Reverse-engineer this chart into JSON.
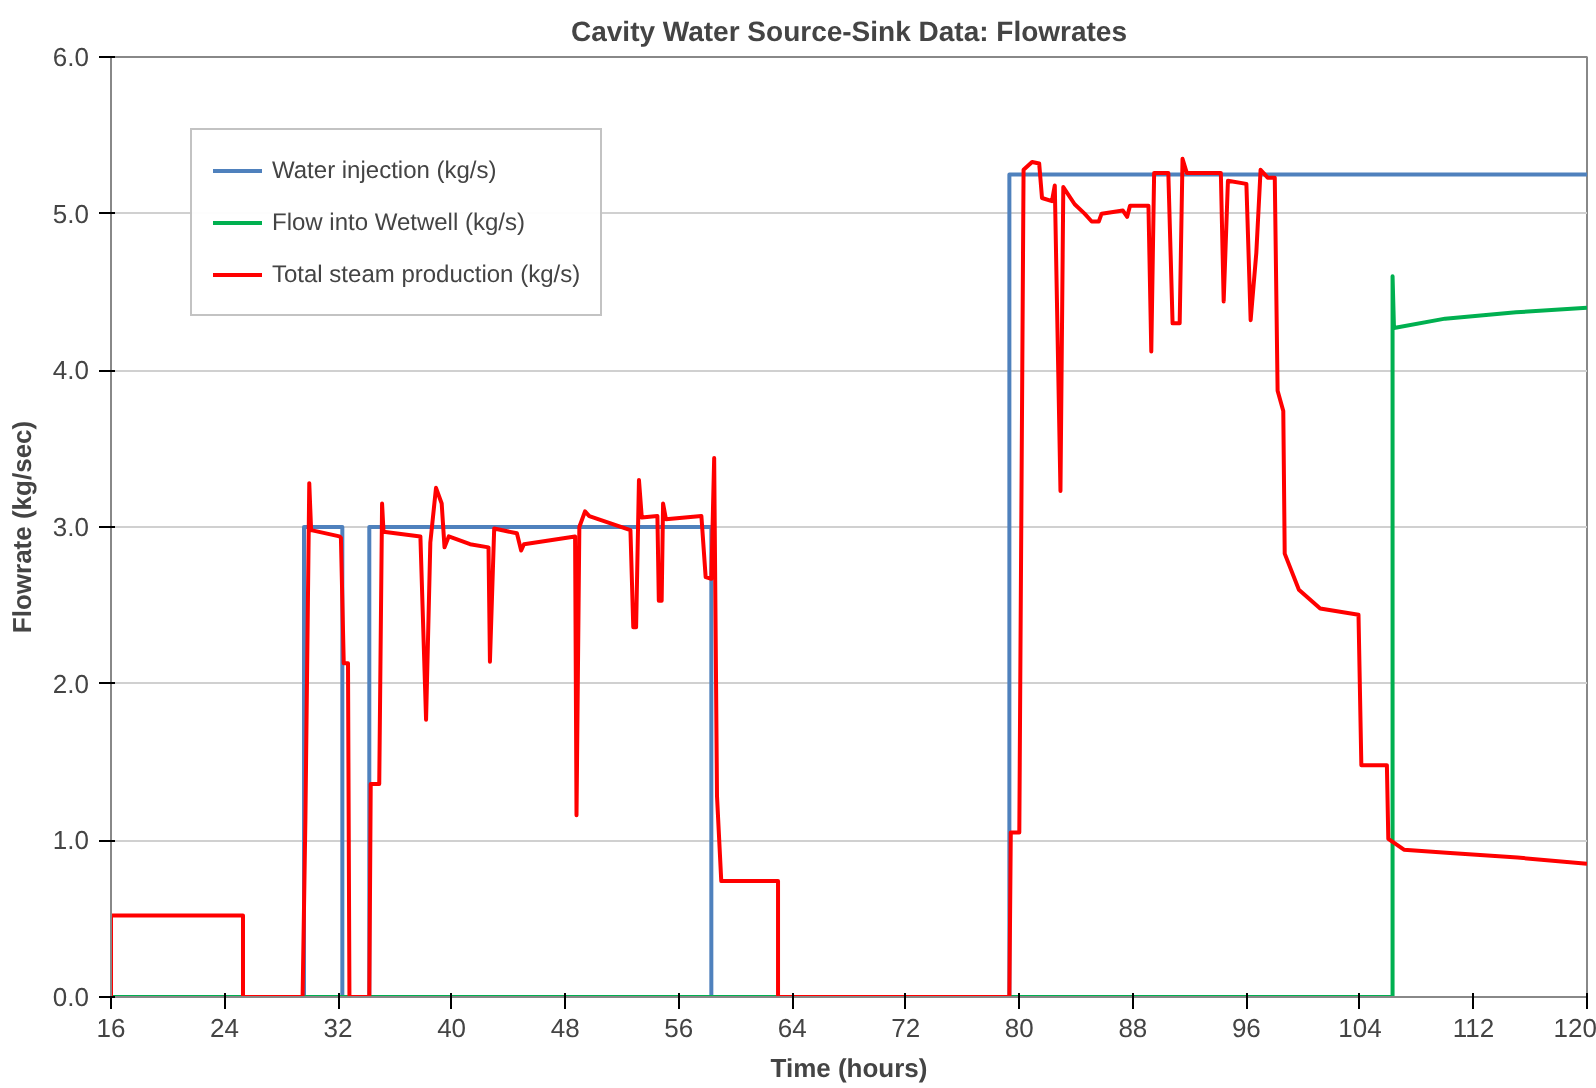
{
  "chart_data": {
    "type": "line",
    "title": "Cavity Water Source-Sink Data: Flowrates",
    "xlabel": "Time (hours)",
    "ylabel": "Flowrate (kg/sec)",
    "xlim": [
      16,
      120
    ],
    "xticks": [
      16,
      24,
      32,
      40,
      48,
      56,
      64,
      72,
      80,
      88,
      96,
      104,
      112,
      120
    ],
    "ylim": [
      0,
      6
    ],
    "yticks": [
      {
        "value": 0,
        "label": "0.0"
      },
      {
        "value": 1,
        "label": "1.0"
      },
      {
        "value": 2,
        "label": "2.0"
      },
      {
        "value": 3,
        "label": "3.0"
      },
      {
        "value": 4,
        "label": "4.0"
      },
      {
        "value": 5,
        "label": "5.0"
      },
      {
        "value": 6,
        "label": "6.0"
      }
    ],
    "grid": "y",
    "legend": "top left",
    "marker": "none",
    "line_style": "solid",
    "series": [
      {
        "name": "Water injection (kg/s)",
        "color": "#4f81bd",
        "x": [
          16,
          29.6,
          29.6,
          32.3,
          32.3,
          34.2,
          34.2,
          58.3,
          58.3,
          79.3,
          79.3,
          120
        ],
        "values": [
          0,
          0,
          3.0,
          3.0,
          0,
          0,
          3.0,
          3.0,
          0,
          0,
          5.25,
          5.25
        ]
      },
      {
        "name": "Flow into Wetwell (kg/s)",
        "color": "#00b050",
        "x": [
          16,
          106.3,
          106.3,
          106.4,
          110,
          115,
          120
        ],
        "values": [
          0,
          0,
          4.6,
          4.27,
          4.33,
          4.37,
          4.4
        ]
      },
      {
        "name": "Total steam production (kg/s)",
        "color": "#ff0000",
        "x": [
          16,
          16,
          25.3,
          25.3,
          29.5,
          29.7,
          29.97,
          30.1,
          32.1,
          32.2,
          32.4,
          32.7,
          32.8,
          34.2,
          34.3,
          34.9,
          35.1,
          35.2,
          37.8,
          38.2,
          38.5,
          38.9,
          39.3,
          39.5,
          39.8,
          41.3,
          42.6,
          42.7,
          43.0,
          44.6,
          44.9,
          45.1,
          48.7,
          48.8,
          49.0,
          49.4,
          49.7,
          52.6,
          52.8,
          53.0,
          53.2,
          53.4,
          54.5,
          54.6,
          54.8,
          54.9,
          55.1,
          57.6,
          57.9,
          58.3,
          58.5,
          58.7,
          59.0,
          63.0,
          63.0,
          79.3,
          79.4,
          80.0,
          80.3,
          80.9,
          81.4,
          81.6,
          82.3,
          82.5,
          82.9,
          83.1,
          83.9,
          84.6,
          85.1,
          85.6,
          85.8,
          87.3,
          87.6,
          87.8,
          89.1,
          89.3,
          89.5,
          90.5,
          90.8,
          91.3,
          91.5,
          91.8,
          94.2,
          94.4,
          94.7,
          96.0,
          96.3,
          96.7,
          97.0,
          97.5,
          98.0,
          98.2,
          98.6,
          98.7,
          99.7,
          101.2,
          103.9,
          104.1,
          105.9,
          106.0,
          107.1,
          110.1,
          115.1,
          120
        ],
        "values": [
          0,
          0.52,
          0.52,
          0,
          0,
          1.15,
          3.28,
          2.98,
          2.94,
          2.93,
          2.13,
          2.13,
          0,
          0,
          1.36,
          1.36,
          3.15,
          2.97,
          2.94,
          1.77,
          2.9,
          3.25,
          3.15,
          2.87,
          2.94,
          2.89,
          2.87,
          2.14,
          2.99,
          2.96,
          2.85,
          2.89,
          2.94,
          1.16,
          3.0,
          3.1,
          3.07,
          2.98,
          2.36,
          2.36,
          3.3,
          3.06,
          3.07,
          2.53,
          2.53,
          3.15,
          3.05,
          3.07,
          2.68,
          2.67,
          3.44,
          1.28,
          0.74,
          0.74,
          0,
          0,
          1.05,
          1.05,
          5.28,
          5.33,
          5.32,
          5.1,
          5.08,
          5.18,
          3.23,
          5.17,
          5.06,
          5.0,
          4.95,
          4.95,
          5.0,
          5.02,
          4.98,
          5.05,
          5.05,
          4.12,
          5.26,
          5.26,
          4.3,
          4.3,
          5.35,
          5.26,
          5.26,
          4.44,
          5.21,
          5.19,
          4.32,
          4.75,
          5.28,
          5.23,
          5.23,
          3.87,
          3.74,
          2.83,
          2.6,
          2.48,
          2.44,
          1.48,
          1.48,
          1.01,
          0.94,
          0.92,
          0.89,
          0.85
        ]
      }
    ]
  }
}
